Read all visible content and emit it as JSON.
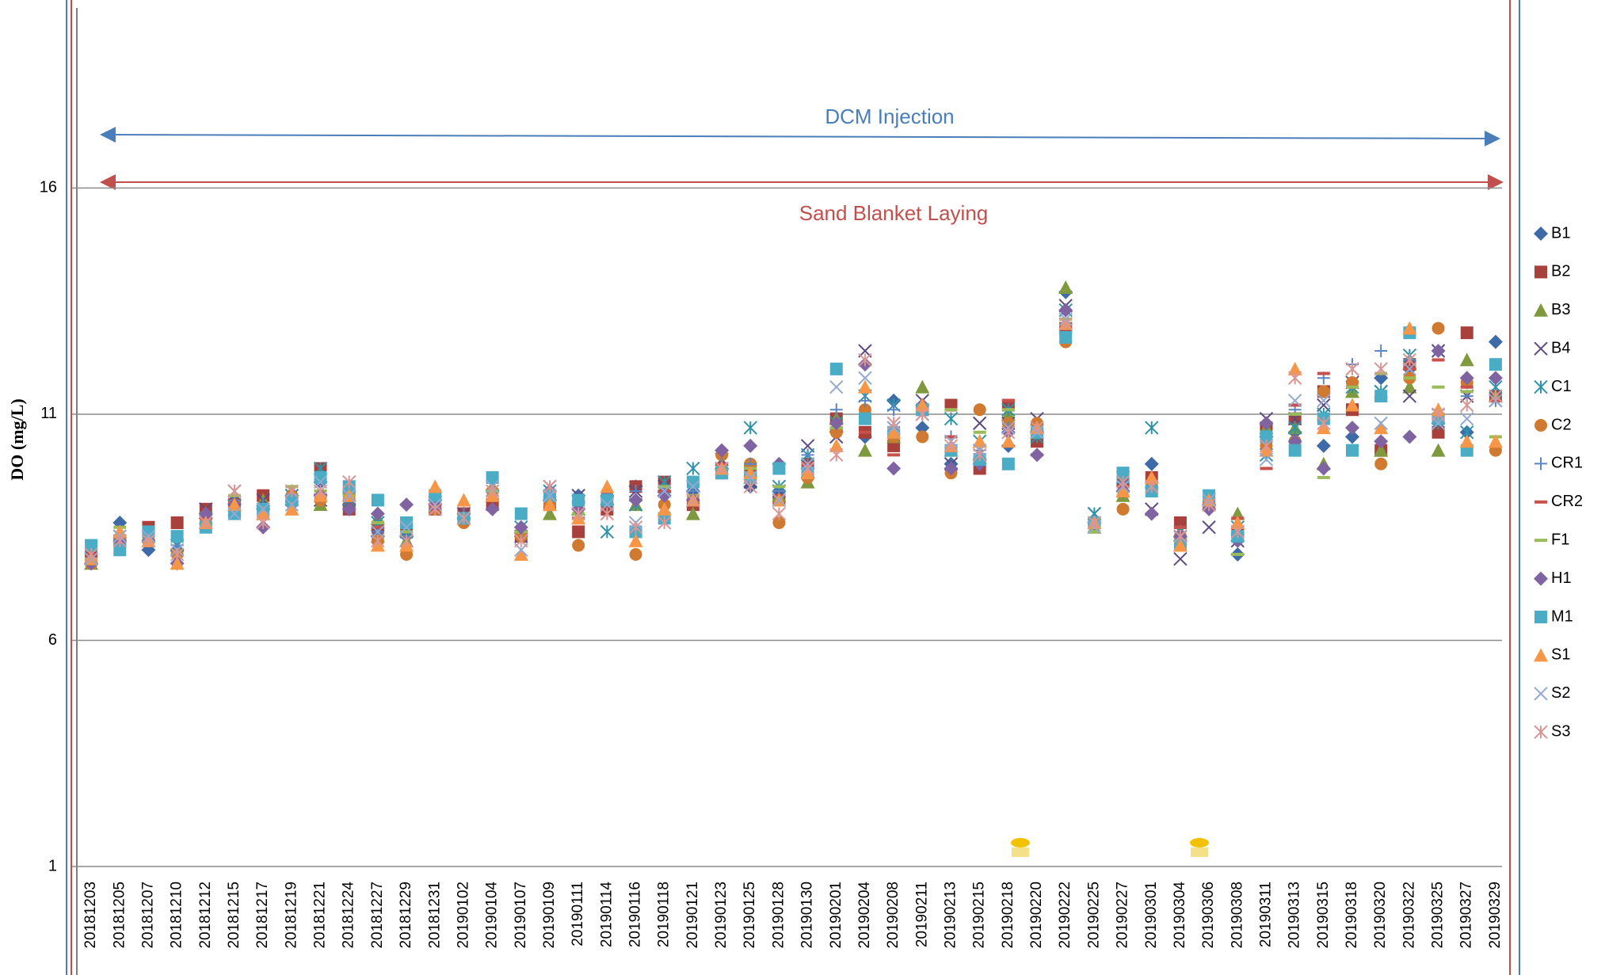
{
  "chart_data": {
    "type": "scatter",
    "ylabel": "DO (mg/L)",
    "annotations": [
      {
        "text": "DCM Injection",
        "color": "#4a7ebb"
      },
      {
        "text": "Sand Blanket Laying",
        "color": "#c0504d"
      }
    ],
    "categories": [
      "20181203",
      "20181205",
      "20181207",
      "20181210",
      "20181212",
      "20181215",
      "20181217",
      "20181219",
      "20181221",
      "20181224",
      "20181227",
      "20181229",
      "20181231",
      "20190102",
      "20190104",
      "20190107",
      "20190109",
      "20190111",
      "20190114",
      "20190116",
      "20190118",
      "20190121",
      "20190123",
      "20190125",
      "20190128",
      "20190130",
      "20190201",
      "20190204",
      "20190208",
      "20190211",
      "20190213",
      "20190215",
      "20190218",
      "20190220",
      "20190222",
      "20190225",
      "20190227",
      "20190301",
      "20190304",
      "20190306",
      "20190308",
      "20190311",
      "20190313",
      "20190315",
      "20190318",
      "20190320",
      "20190322",
      "20190325",
      "20190327",
      "20190329"
    ],
    "ylim": [
      1,
      20
    ],
    "yticks": [
      1,
      6,
      11,
      16
    ],
    "grid": true,
    "series": [
      {
        "name": "B1",
        "color": "#3f6aa8",
        "marker": "diamond",
        "values": [
          7.7,
          8.6,
          8.0,
          8.0,
          8.7,
          9.1,
          8.9,
          9.2,
          9.5,
          9.0,
          8.3,
          8.3,
          9.1,
          8.8,
          9.3,
          8.3,
          9.1,
          9.2,
          9.0,
          9.4,
          9.3,
          9.3,
          9.8,
          9.4,
          9.3,
          9.6,
          10.6,
          10.5,
          11.3,
          10.7,
          9.9,
          10.0,
          10.3,
          10.6,
          13.7,
          8.6,
          9.3,
          9.9,
          8.2,
          9.0,
          7.9,
          10.5,
          10.6,
          10.3,
          10.5,
          11.8,
          12.0,
          10.8,
          10.6,
          12.6
        ]
      },
      {
        "name": "B2",
        "color": "#a8403c",
        "marker": "square",
        "values": [
          7.9,
          8.2,
          8.5,
          8.6,
          8.9,
          9.0,
          9.2,
          9.1,
          9.8,
          8.9,
          8.5,
          8.5,
          8.9,
          8.8,
          9.0,
          8.3,
          9.0,
          8.4,
          8.9,
          9.4,
          9.5,
          9.0,
          9.7,
          9.8,
          9.1,
          9.9,
          10.9,
          10.6,
          10.3,
          11.1,
          11.2,
          9.8,
          11.2,
          10.4,
          12.9,
          8.6,
          9.5,
          9.6,
          8.6,
          9.0,
          8.4,
          10.7,
          10.9,
          11.5,
          11.1,
          10.2,
          12.1,
          10.6,
          12.8,
          11.4
        ]
      },
      {
        "name": "B3",
        "color": "#7f9a3e",
        "marker": "triangle",
        "values": [
          7.7,
          8.4,
          8.3,
          8.0,
          8.6,
          9.0,
          9.1,
          9.3,
          9.0,
          9.4,
          8.7,
          8.2,
          9.3,
          8.7,
          9.2,
          8.5,
          8.8,
          8.9,
          9.3,
          9.0,
          9.4,
          8.8,
          9.9,
          9.6,
          9.2,
          9.5,
          10.9,
          10.2,
          10.5,
          11.6,
          10.2,
          10.1,
          11.0,
          10.6,
          13.8,
          8.5,
          9.2,
          9.5,
          8.4,
          9.0,
          8.8,
          10.7,
          10.7,
          9.9,
          11.5,
          10.2,
          11.6,
          10.2,
          12.2,
          11.4
        ]
      },
      {
        "name": "B4",
        "color": "#5d4b80",
        "marker": "x",
        "values": [
          7.8,
          8.3,
          8.3,
          8.1,
          8.9,
          9.3,
          9.1,
          9.2,
          9.1,
          9.2,
          8.3,
          8.2,
          9.0,
          8.8,
          9.2,
          8.3,
          9.4,
          9.2,
          9.0,
          9.3,
          9.4,
          9.4,
          10.0,
          9.5,
          9.3,
          10.3,
          10.5,
          12.4,
          10.7,
          11.3,
          9.9,
          10.8,
          10.8,
          10.9,
          13.4,
          8.8,
          9.3,
          8.9,
          7.8,
          8.5,
          8.2,
          10.9,
          10.9,
          11.2,
          11.7,
          11.5,
          11.4,
          12.4,
          11.4,
          11.3
        ]
      },
      {
        "name": "C1",
        "color": "#2e93a8",
        "marker": "star",
        "values": [
          7.8,
          8.2,
          8.2,
          8.1,
          8.7,
          8.9,
          8.8,
          9.2,
          9.8,
          9.1,
          8.6,
          8.4,
          8.9,
          8.7,
          9.4,
          8.5,
          9.3,
          8.9,
          8.4,
          9.0,
          9.5,
          9.8,
          9.8,
          10.7,
          9.4,
          10.1,
          10.8,
          11.4,
          11.2,
          11.0,
          10.9,
          10.4,
          11.1,
          10.5,
          13.3,
          8.8,
          9.6,
          10.7,
          8.4,
          9.1,
          8.5,
          10.1,
          10.7,
          11.0,
          11.6,
          11.5,
          12.3,
          10.8,
          10.6,
          11.6
        ]
      },
      {
        "name": "C2",
        "color": "#cf7a30",
        "marker": "circle",
        "values": [
          7.7,
          8.2,
          8.2,
          7.9,
          8.6,
          9.0,
          8.8,
          9.2,
          9.1,
          9.2,
          8.2,
          7.9,
          8.9,
          8.6,
          9.3,
          8.3,
          9.0,
          8.1,
          9.2,
          7.9,
          9.0,
          9.1,
          10.1,
          9.9,
          8.6,
          9.6,
          10.6,
          11.1,
          10.5,
          10.5,
          9.7,
          11.1,
          10.8,
          10.8,
          12.6,
          8.6,
          8.9,
          9.4,
          8.3,
          9.0,
          8.3,
          10.3,
          10.4,
          11.5,
          11.7,
          9.9,
          11.8,
          12.9,
          11.7,
          10.2
        ]
      },
      {
        "name": "CR1",
        "color": "#5b86c4",
        "marker": "plus",
        "values": [
          7.8,
          8.3,
          8.3,
          8.1,
          8.8,
          9.1,
          9.0,
          9.0,
          9.3,
          9.3,
          8.4,
          8.3,
          9.1,
          8.8,
          9.2,
          8.4,
          9.3,
          8.9,
          9.2,
          9.3,
          9.3,
          9.3,
          9.9,
          9.9,
          9.3,
          10.1,
          11.1,
          11.3,
          11.1,
          11.1,
          10.5,
          10.2,
          10.7,
          10.6,
          13.0,
          8.6,
          9.5,
          9.4,
          8.4,
          9.0,
          8.5,
          10.6,
          11.1,
          11.8,
          12.1,
          12.4,
          12.2,
          11.1,
          11.4,
          11.3
        ]
      },
      {
        "name": "CR2",
        "color": "#c9504b",
        "marker": "dash",
        "values": [
          7.9,
          8.2,
          8.2,
          8.2,
          8.7,
          9.0,
          8.9,
          9.1,
          9.3,
          9.1,
          8.5,
          8.4,
          8.9,
          8.7,
          9.1,
          8.4,
          9.1,
          8.7,
          9.0,
          9.1,
          9.3,
          9.2,
          9.9,
          9.8,
          9.2,
          9.9,
          10.7,
          10.6,
          10.1,
          11.0,
          10.5,
          10.3,
          11.3,
          10.1,
          13.0,
          8.6,
          9.4,
          9.5,
          8.5,
          8.9,
          8.7,
          9.8,
          11.2,
          11.9,
          11.6,
          11.3,
          12.0,
          12.2,
          11.6,
          11.3
        ]
      },
      {
        "name": "F1",
        "color": "#9bbb59",
        "marker": "dash",
        "values": [
          7.8,
          8.5,
          8.4,
          8.2,
          8.8,
          9.2,
          9.0,
          9.4,
          9.3,
          9.2,
          8.6,
          8.4,
          9.2,
          8.6,
          9.3,
          8.4,
          9.2,
          8.8,
          9.2,
          9.1,
          9.4,
          9.2,
          9.8,
          9.8,
          9.4,
          9.8,
          10.7,
          10.8,
          10.6,
          11.1,
          11.1,
          10.6,
          11.1,
          10.7,
          13.1,
          8.4,
          9.2,
          9.5,
          8.2,
          8.9,
          7.9,
          10.8,
          11.0,
          9.6,
          11.6,
          11.9,
          11.8,
          11.6,
          11.5,
          10.5
        ]
      },
      {
        "name": "H1",
        "color": "#8064a2",
        "marker": "diamond",
        "values": [
          7.7,
          8.2,
          8.2,
          7.7,
          8.8,
          9.0,
          8.5,
          9.0,
          9.2,
          8.9,
          8.8,
          9.0,
          9.0,
          8.7,
          8.9,
          8.5,
          9.3,
          8.9,
          9.2,
          9.1,
          9.2,
          9.1,
          10.2,
          10.3,
          9.9,
          9.8,
          10.8,
          12.1,
          9.8,
          11.2,
          9.8,
          9.9,
          10.6,
          10.1,
          13.3,
          8.6,
          9.3,
          8.8,
          8.3,
          8.9,
          8.2,
          10.8,
          10.4,
          9.8,
          10.7,
          10.4,
          10.5,
          12.4,
          11.8,
          11.8
        ]
      },
      {
        "name": "M1",
        "color": "#4bacc6",
        "marker": "square",
        "values": [
          8.1,
          8.0,
          8.4,
          8.3,
          8.5,
          8.8,
          8.9,
          9.1,
          9.6,
          9.4,
          9.1,
          8.6,
          9.2,
          8.7,
          9.6,
          8.8,
          9.2,
          9.1,
          9.1,
          8.4,
          8.7,
          9.5,
          9.7,
          9.6,
          9.8,
          9.7,
          12.0,
          10.9,
          10.6,
          11.1,
          10.2,
          10.0,
          9.9,
          10.6,
          12.7,
          8.6,
          9.7,
          9.3,
          8.1,
          9.2,
          8.3,
          10.5,
          10.2,
          10.9,
          10.2,
          11.4,
          12.8,
          10.9,
          10.2,
          12.1
        ]
      },
      {
        "name": "S1",
        "color": "#f79646",
        "marker": "triangle",
        "values": [
          7.8,
          8.4,
          8.2,
          7.7,
          8.6,
          9.0,
          8.8,
          8.9,
          9.2,
          9.2,
          8.1,
          8.1,
          9.4,
          9.1,
          9.2,
          7.9,
          9.0,
          8.7,
          9.4,
          8.2,
          8.9,
          9.1,
          9.8,
          9.7,
          9.1,
          9.7,
          10.3,
          11.6,
          10.6,
          11.2,
          10.3,
          10.4,
          10.4,
          10.7,
          13.0,
          8.6,
          9.3,
          9.6,
          8.1,
          9.1,
          8.6,
          10.2,
          12.0,
          10.7,
          11.2,
          10.7,
          12.9,
          11.1,
          10.4,
          10.4
        ]
      },
      {
        "name": "S2",
        "color": "#94a9d1",
        "marker": "x",
        "values": [
          7.8,
          8.3,
          8.3,
          8.0,
          8.6,
          8.8,
          8.9,
          9.0,
          9.5,
          9.2,
          8.4,
          8.5,
          9.0,
          8.7,
          9.4,
          8.0,
          9.2,
          8.8,
          9.0,
          8.6,
          9.3,
          9.4,
          9.8,
          9.6,
          9.1,
          9.9,
          11.6,
          11.8,
          10.7,
          11.0,
          10.4,
          10.2,
          10.7,
          10.6,
          13.1,
          8.5,
          9.4,
          9.4,
          8.3,
          9.1,
          8.4,
          10.0,
          11.3,
          11.3,
          12.0,
          10.8,
          12.0,
          10.8,
          10.9,
          11.3
        ]
      },
      {
        "name": "S3",
        "color": "#d99694",
        "marker": "star",
        "values": [
          7.9,
          8.2,
          8.2,
          7.9,
          8.6,
          9.3,
          8.6,
          9.3,
          9.3,
          9.5,
          8.2,
          8.2,
          8.9,
          8.7,
          9.3,
          8.2,
          9.4,
          8.8,
          8.8,
          8.5,
          8.6,
          9.1,
          9.8,
          9.4,
          8.8,
          9.8,
          10.1,
          12.2,
          10.8,
          11.0,
          10.3,
          10.1,
          10.6,
          10.7,
          13.0,
          8.6,
          9.5,
          9.4,
          8.3,
          9.0,
          8.4,
          10.3,
          11.8,
          10.8,
          12.0,
          12.0,
          12.2,
          11.0,
          11.2,
          11.4
        ]
      }
    ]
  }
}
